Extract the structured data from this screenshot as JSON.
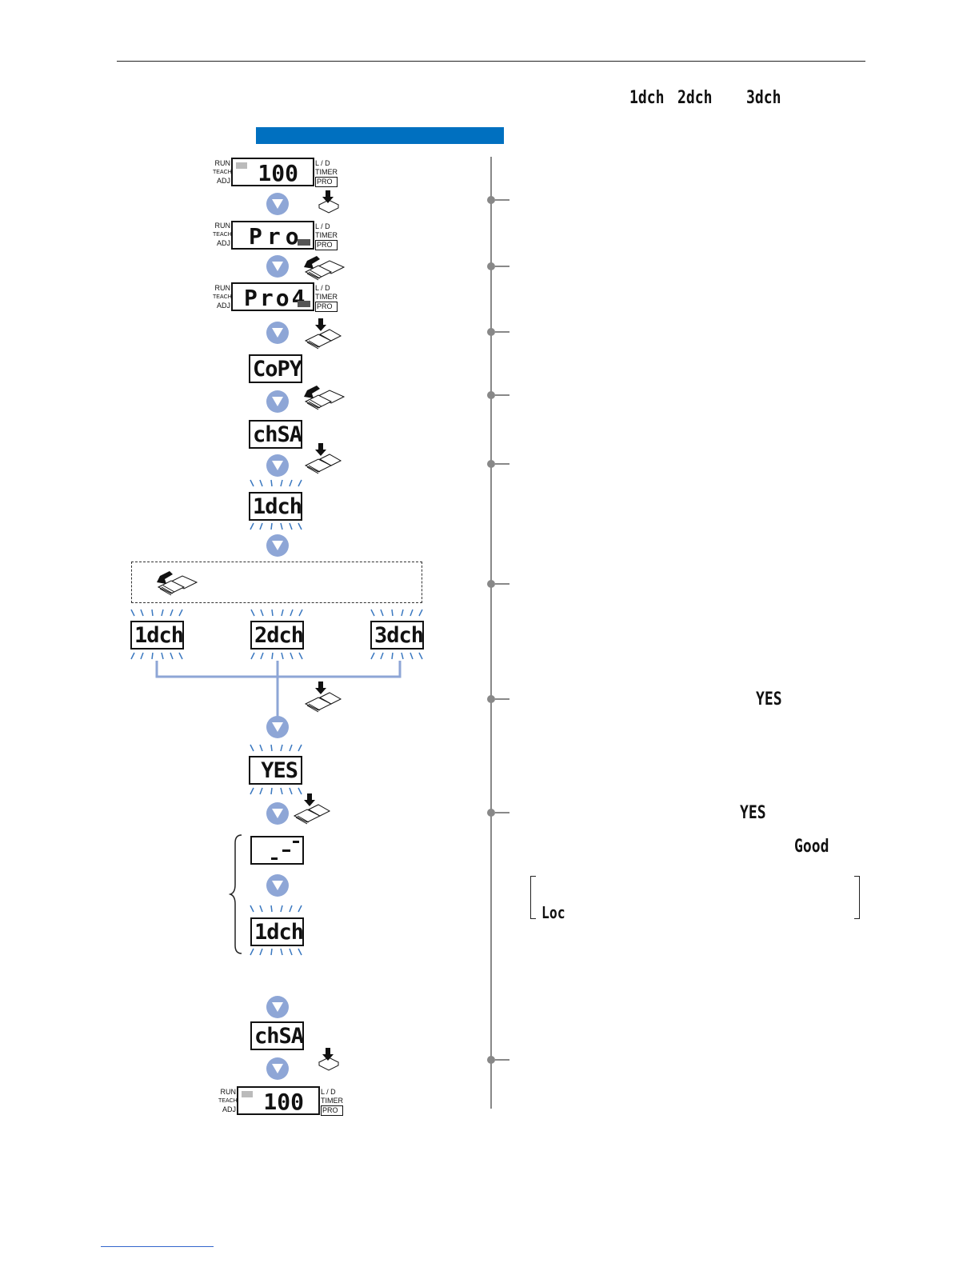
{
  "top_codes": [
    "1dch",
    "2dch",
    "3dch"
  ],
  "section_bar_color": "#0070c0",
  "indicator": {
    "run": "RUN",
    "teach": "TEACH",
    "adj": "ADJ",
    "ld": "L / D",
    "timer": "TIMER",
    "pro": "PRO"
  },
  "displays": {
    "value1": "100",
    "pro": "Pro",
    "pro4": "Pro4",
    "copy": "CoPY",
    "chsa": "chSA",
    "ch1": "1dch",
    "ch2": "2dch",
    "ch3": "3dch",
    "yes": "YES",
    "busy": "- -",
    "ch1b": "1dch",
    "chsa2": "chSA",
    "value2": "100"
  },
  "right_codes": {
    "yes1": "YES",
    "yes2": "YES",
    "good": "Good",
    "loc": "Loc"
  },
  "icons": [
    "push-button-icon",
    "long-press-button-icon",
    "blink-icon",
    "down-arrow-icon"
  ]
}
